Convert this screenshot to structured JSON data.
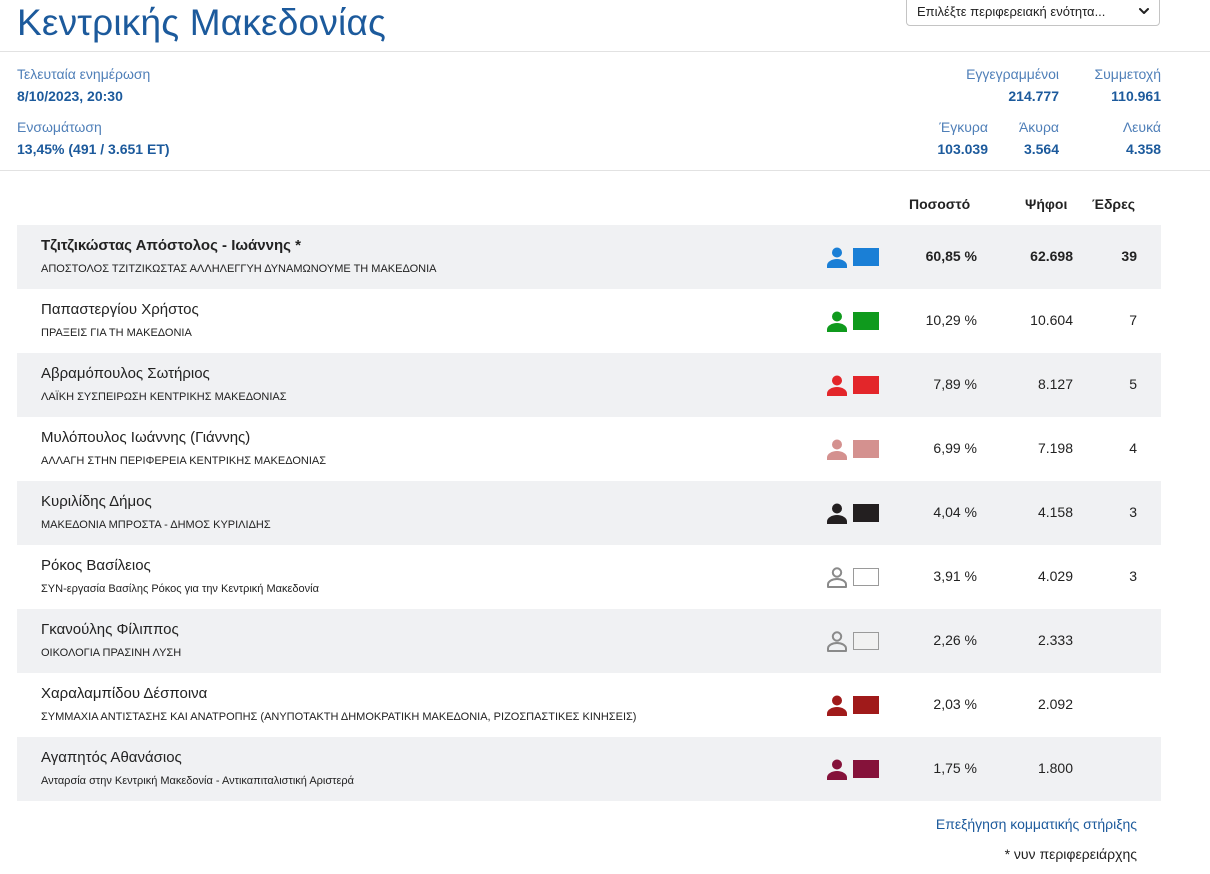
{
  "header": {
    "title": "Κεντρικής Μακεδονίας",
    "region_select_value": "Επιλέξτε περιφερειακή ενότητα..."
  },
  "summary": {
    "last_update_label": "Τελευταία ενημέρωση",
    "last_update_value": "8/10/2023, 20:30",
    "integration_label": "Ενσωμάτωση",
    "integration_value": "13,45% (491 / 3.651 ΕΤ)",
    "registered_label": "Εγγεγραμμένοι",
    "registered_value": "214.777",
    "turnout_label": "Συμμετοχή",
    "turnout_value": "110.961",
    "valid_label": "Έγκυρα",
    "valid_value": "103.039",
    "invalid_label": "Άκυρα",
    "invalid_value": "3.564",
    "blank_label": "Λευκά",
    "blank_value": "4.358"
  },
  "table": {
    "col_percent": "Ποσοστό",
    "col_votes": "Ψήφοι",
    "col_seats": "Έδρες",
    "rows": [
      {
        "candidate": "Τζιτζικώστας Απόστολος - Ιωάννης *",
        "party": "ΑΠΟΣΤΟΛΟΣ ΤΖΙΤΖΙΚΩΣΤΑΣ ΑΛΛΗΛΕΓΓΥΗ ΔΥΝΑΜΩΝΟΥΜΕ ΤΗ ΜΑΚΕΔΟΝΙΑ",
        "color": "#1a7fd6",
        "percent": "60,85 %",
        "votes": "62.698",
        "seats": "39"
      },
      {
        "candidate": "Παπαστεργίου Χρήστος",
        "party": "ΠΡΑΞΕΙΣ ΓΙΑ ΤΗ ΜΑΚΕΔΟΝΙΑ",
        "color": "#0f9a1d",
        "percent": "10,29 %",
        "votes": "10.604",
        "seats": "7"
      },
      {
        "candidate": "Αβραμόπουλος Σωτήριος",
        "party": "ΛΑΪΚΗ ΣΥΣΠΕΙΡΩΣΗ ΚΕΝΤΡΙΚΗΣ ΜΑΚΕΔΟΝΙΑΣ",
        "color": "#e3262a",
        "percent": "7,89 %",
        "votes": "8.127",
        "seats": "5"
      },
      {
        "candidate": "Μυλόπουλος Ιωάννης (Γιάννης)",
        "party": "ΑΛΛΑΓΗ ΣΤΗΝ ΠΕΡΙΦΕΡΕΙΑ ΚΕΝΤΡΙΚΗΣ ΜΑΚΕΔΟΝΙΑΣ",
        "color": "#d4918f",
        "percent": "6,99 %",
        "votes": "7.198",
        "seats": "4"
      },
      {
        "candidate": "Κυριλίδης Δήμος",
        "party": "ΜΑΚΕΔΟΝΙΑ ΜΠΡΟΣΤΑ - ΔΗΜΟΣ ΚΥΡΙΛΙΔΗΣ",
        "color": "#231f20",
        "percent": "4,04 %",
        "votes": "4.158",
        "seats": "3"
      },
      {
        "candidate": "Ρόκος Βασίλειος",
        "party": "ΣΥΝ-εργασία Βασίλης Ρόκος για την Κεντρική Μακεδονία",
        "color": "#ffffff",
        "percent": "3,91 %",
        "votes": "4.029",
        "seats": "3"
      },
      {
        "candidate": "Γκανούλης Φίλιππος",
        "party": "ΟΙΚΟΛΟΓΙΑ ΠΡΑΣΙΝΗ ΛΥΣΗ",
        "color": "#f1f1f1",
        "percent": "2,26 %",
        "votes": "2.333",
        "seats": ""
      },
      {
        "candidate": "Χαραλαμπίδου Δέσποινα",
        "party": "ΣΥΜΜΑΧΙΑ ΑΝΤΙΣΤΑΣΗΣ ΚΑΙ ΑΝΑΤΡΟΠΗΣ (ΑΝΥΠΟΤΑΚΤΗ ΔΗΜΟΚΡΑΤΙΚΗ ΜΑΚΕΔΟΝΙΑ, ΡΙΖΟΣΠΑΣΤΙΚΕΣ ΚΙΝΗΣΕΙΣ)",
        "color": "#a01a1a",
        "percent": "2,03 %",
        "votes": "2.092",
        "seats": ""
      },
      {
        "candidate": "Αγαπητός Αθανάσιος",
        "party": "Ανταρσία στην Κεντρική Μακεδονία - Αντικαπιταλιστική Αριστερά",
        "color": "#85123a",
        "percent": "1,75 %",
        "votes": "1.800",
        "seats": ""
      }
    ]
  },
  "footer": {
    "support_link": "Επεξήγηση κομματικής στήριξης",
    "footnote": "* νυν περιφερειάρχης"
  }
}
